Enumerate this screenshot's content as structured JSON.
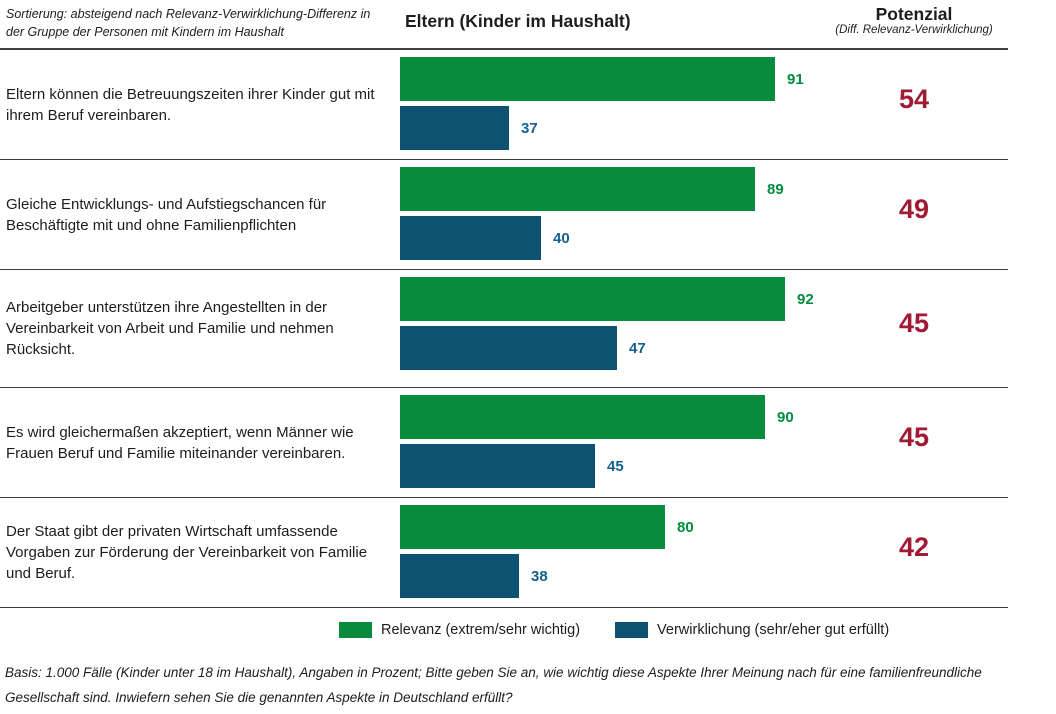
{
  "header": {
    "sort_note": "Sortierung: absteigend nach Relevanz-Verwirklichung-Differenz in der Gruppe der Personen mit Kindern im Haushalt",
    "title": "Eltern (Kinder im Haushalt)",
    "potenzial_title": "Potenzial",
    "potenzial_subtitle": "(Diff. Relevanz-Verwirklichung)"
  },
  "chart_data": {
    "type": "bar",
    "orientation": "horizontal",
    "title": "Eltern (Kinder im Haushalt)",
    "unit": "Prozent",
    "xlim": [
      0,
      100
    ],
    "grid": false,
    "legend_position": "bottom",
    "categories": [
      "Eltern können die Betreuungszeiten ihrer Kinder gut mit ihrem Beruf vereinbaren.",
      "Gleiche Entwicklungs- und Aufstiegschancen für Beschäftigte mit und ohne Familienpflichten",
      "Arbeitgeber unterstützen ihre Angestellten in der Vereinbarkeit von Arbeit und Familie und nehmen Rücksicht.",
      "Es wird gleichermaßen akzeptiert, wenn Männer wie Frauen Beruf und Familie miteinander vereinbaren.",
      "Der Staat gibt der privaten Wirtschaft umfassende Vorgaben zur Förderung der Vereinbarkeit von Familie und Beruf."
    ],
    "series": [
      {
        "name": "Relevanz (extrem/sehr wichtig)",
        "color": "#098b3d",
        "values": [
          91,
          89,
          92,
          90,
          80
        ]
      },
      {
        "name": "Verwirklichung (sehr/eher gut erfüllt)",
        "color": "#0e5272",
        "values": [
          37,
          40,
          47,
          45,
          38
        ]
      }
    ],
    "potenzial": {
      "label": "Potenzial (Diff. Relevanz-Verwirklichung)",
      "color": "#a01a33",
      "values": [
        54,
        49,
        45,
        45,
        42
      ]
    }
  },
  "footer": {
    "text": "Basis: 1.000 Fälle (Kinder unter 18 im Haushalt), Angaben in Prozent; Bitte geben Sie an, wie wichtig diese Aspekte Ihrer Meinung nach für eine familienfreundliche Gesellschaft sind. Inwiefern sehen Sie die genannten Aspekte in Deutschland erfüllt?"
  }
}
